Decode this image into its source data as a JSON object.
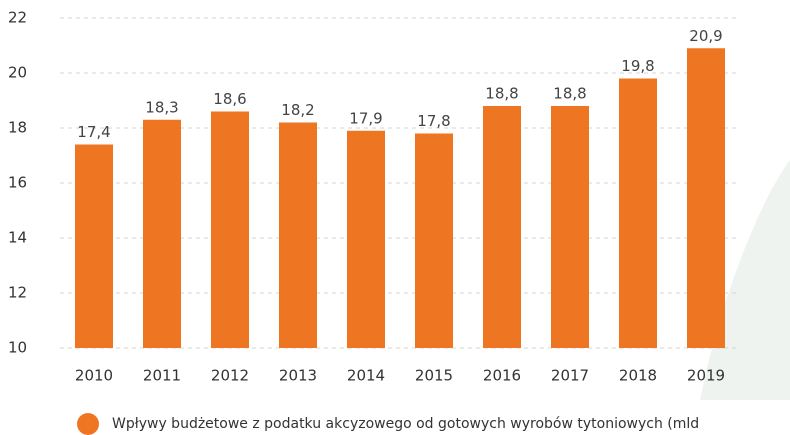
{
  "chart_data": {
    "type": "bar",
    "categories": [
      "2010",
      "2011",
      "2012",
      "2013",
      "2014",
      "2015",
      "2016",
      "2017",
      "2018",
      "2019"
    ],
    "series": [
      {
        "name": "Wpływy budżetowe z podatku akcyzowego od gotowych wyrobów tytoniowych (mld",
        "color": "#ee7623",
        "values": [
          17.4,
          18.3,
          18.6,
          18.2,
          17.9,
          17.8,
          18.8,
          18.8,
          19.8,
          20.9
        ],
        "value_labels": [
          "17,4",
          "18,3",
          "18,6",
          "18,2",
          "17,9",
          "17,8",
          "18,8",
          "18,8",
          "19,8",
          "20,9"
        ]
      }
    ],
    "ylim": [
      10,
      22
    ],
    "yticks": [
      10,
      12,
      14,
      16,
      18,
      20,
      22
    ],
    "grid": true,
    "legend": "bottom"
  }
}
